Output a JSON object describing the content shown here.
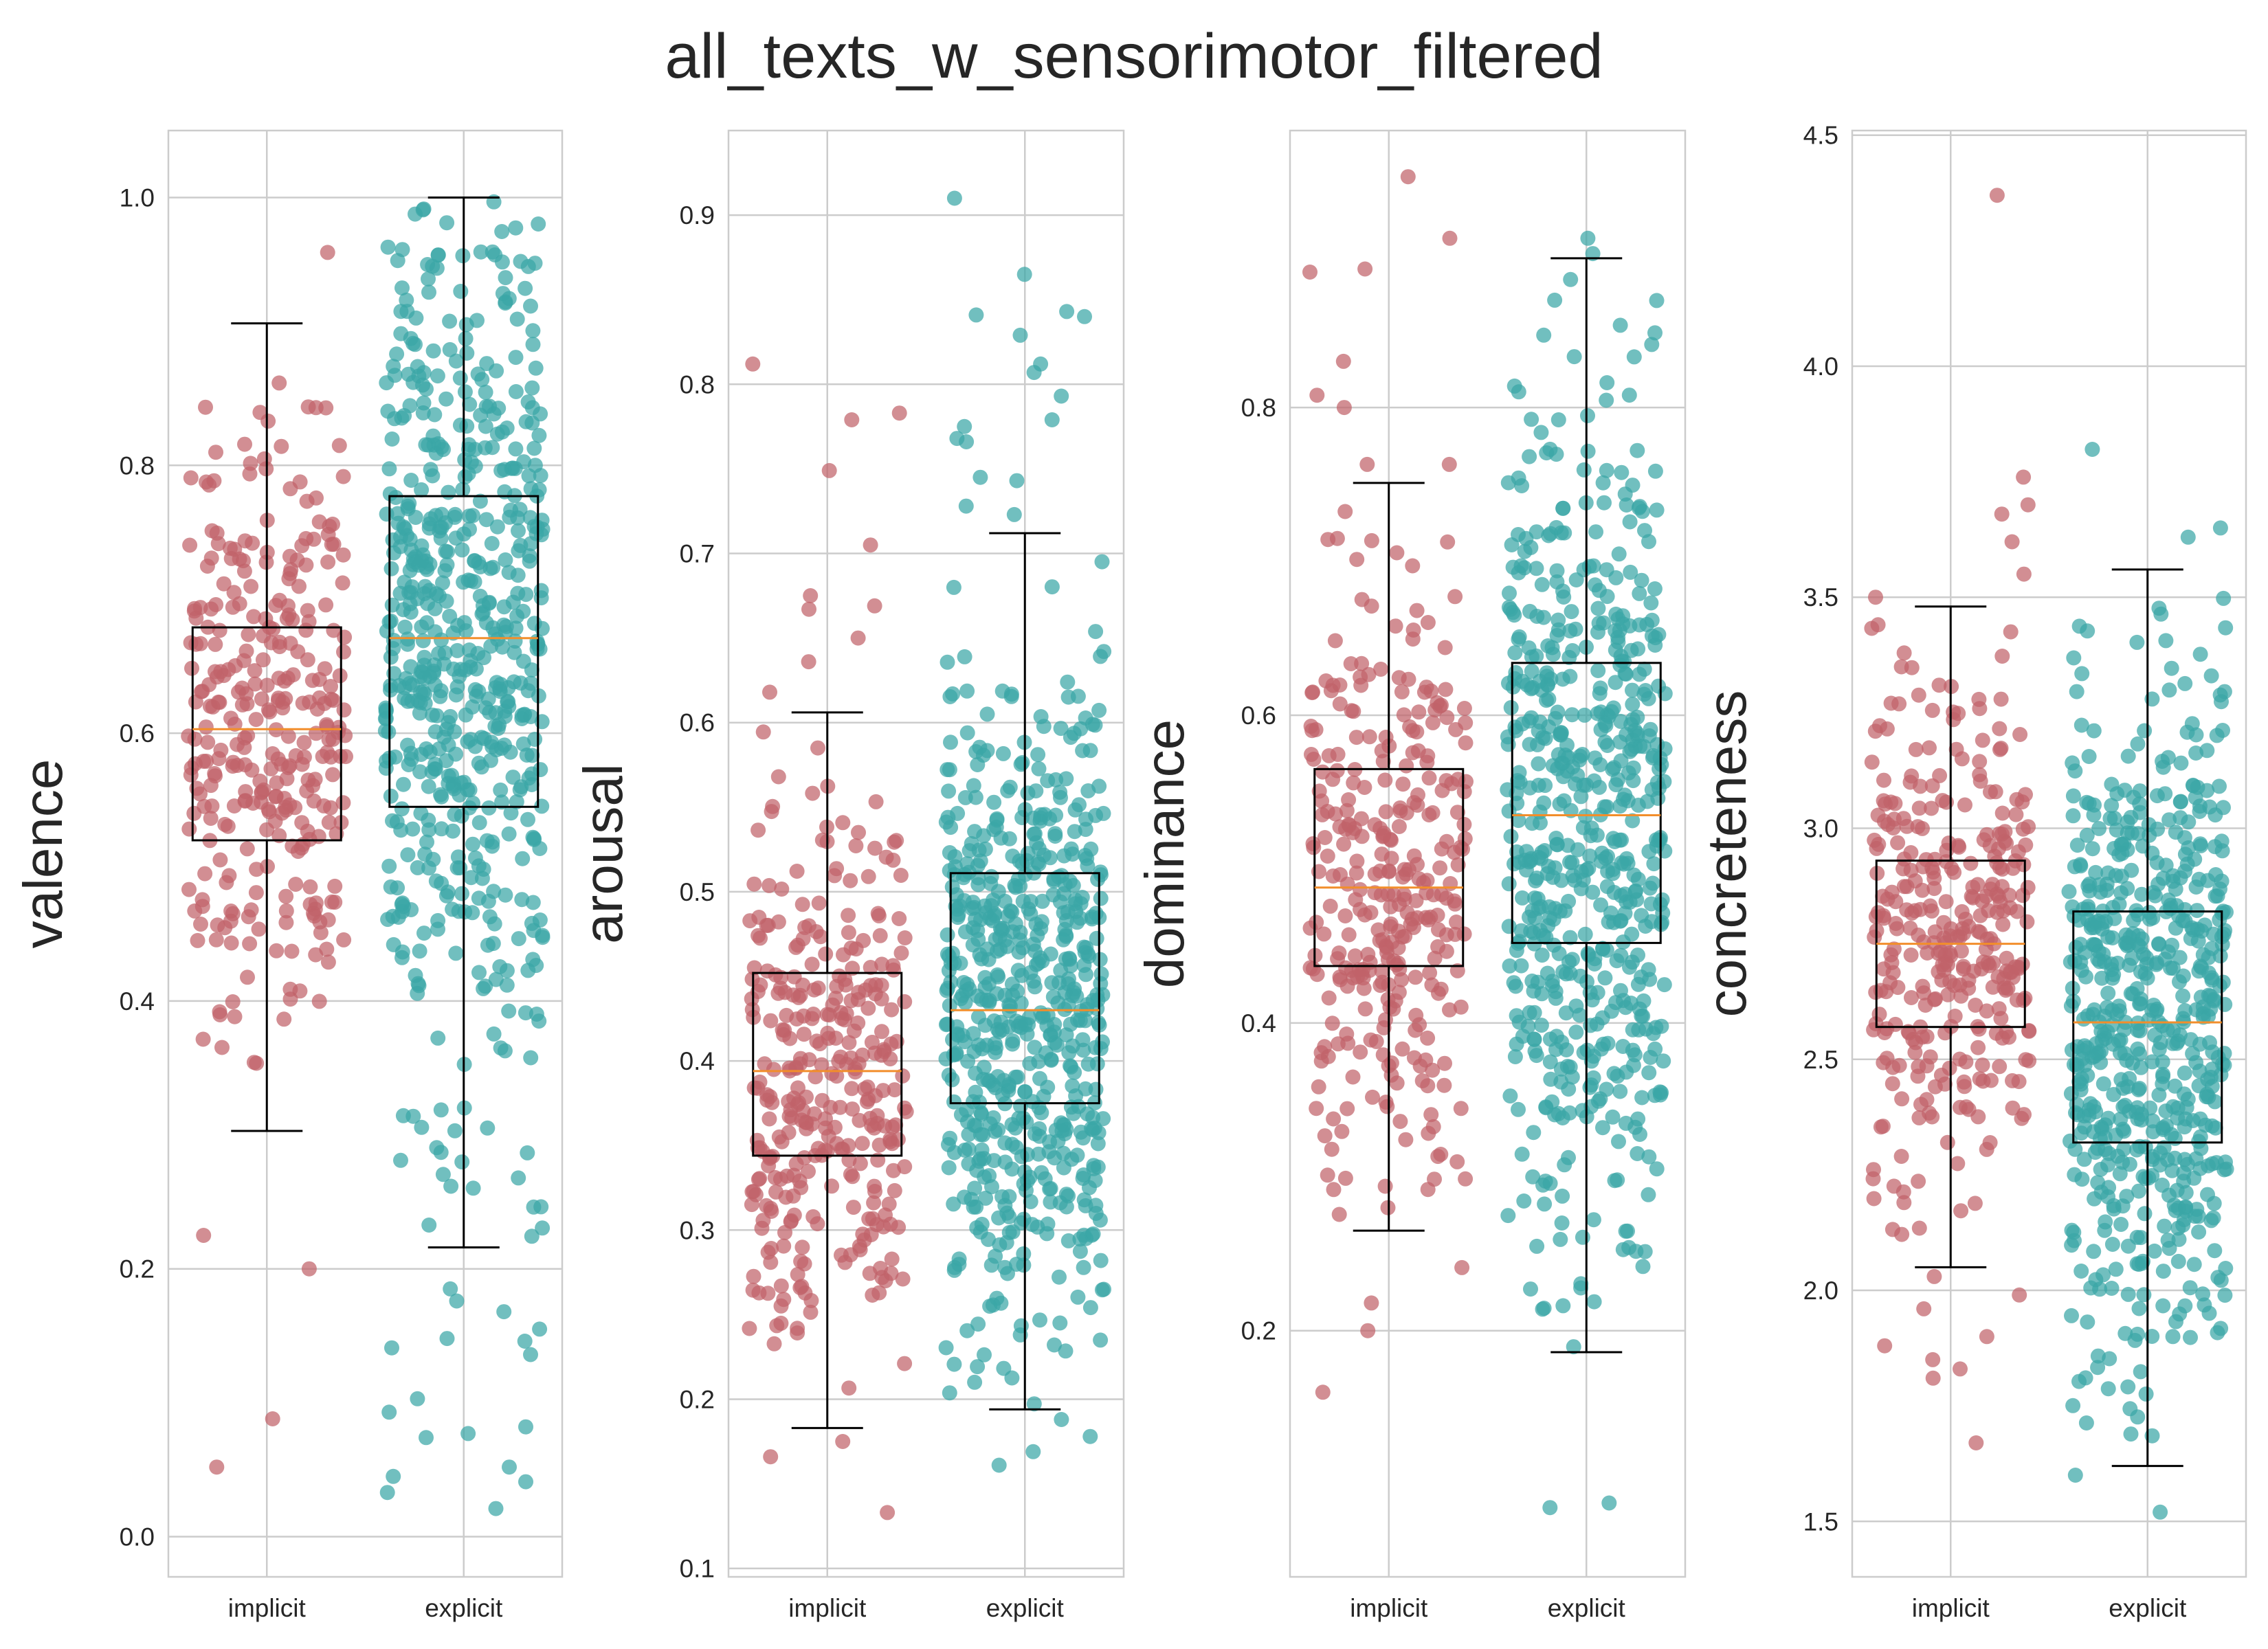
{
  "figure": {
    "title": "all_texts_w_sensorimotor_filtered"
  },
  "colors": {
    "implicit": "#c0626a",
    "explicit": "#3aa6a6",
    "median": "#f28e2b",
    "box": "#000000",
    "grid": "#cccccc",
    "frame": "#cccccc"
  },
  "chart_data": [
    {
      "type": "box",
      "ylabel": "valence",
      "ylim": [
        -0.03,
        1.05
      ],
      "yticks": [
        "0.0",
        "0.2",
        "0.4",
        "0.6",
        "0.8",
        "1.0"
      ],
      "categories": [
        "implicit",
        "explicit"
      ],
      "boxes": [
        {
          "name": "implicit",
          "q1": 0.52,
          "median": 0.603,
          "q3": 0.679,
          "whisker_low": 0.303,
          "whisker_high": 0.906,
          "n_points": 320,
          "range": [
            0.3,
            0.91
          ],
          "outliers": [
            0.959,
            0.225,
            0.2,
            0.088,
            0.052
          ]
        },
        {
          "name": "explicit",
          "q1": 0.545,
          "median": 0.671,
          "q3": 0.777,
          "whisker_low": 0.216,
          "whisker_high": 1.0,
          "n_points": 600,
          "range": [
            0.22,
            1.0
          ],
          "outliers": [
            0.185,
            0.176,
            0.168,
            0.155,
            0.148,
            0.146,
            0.141,
            0.136,
            0.103,
            0.093,
            0.082,
            0.077,
            0.074,
            0.052,
            0.045,
            0.041,
            0.033,
            0.021
          ]
        }
      ]
    },
    {
      "type": "box",
      "ylabel": "arousal",
      "ylim": [
        0.095,
        0.95
      ],
      "yticks": [
        "0.1",
        "0.2",
        "0.3",
        "0.4",
        "0.5",
        "0.6",
        "0.7",
        "0.8",
        "0.9"
      ],
      "categories": [
        "implicit",
        "explicit"
      ],
      "boxes": [
        {
          "name": "implicit",
          "q1": 0.344,
          "median": 0.394,
          "q3": 0.452,
          "whisker_low": 0.183,
          "whisker_high": 0.606,
          "n_points": 330,
          "range": [
            0.185,
            0.6
          ],
          "outliers": [
            0.812,
            0.783,
            0.779,
            0.749,
            0.705,
            0.675,
            0.669,
            0.667,
            0.65,
            0.636,
            0.618,
            0.175,
            0.166,
            0.133
          ]
        },
        {
          "name": "explicit",
          "q1": 0.375,
          "median": 0.43,
          "q3": 0.511,
          "whisker_low": 0.194,
          "whisker_high": 0.712,
          "n_points": 600,
          "range": [
            0.195,
            0.71
          ],
          "outliers": [
            0.91,
            0.865,
            0.843,
            0.841,
            0.84,
            0.829,
            0.812,
            0.807,
            0.793,
            0.779,
            0.775,
            0.768,
            0.766,
            0.745,
            0.743,
            0.728,
            0.723,
            0.188,
            0.178,
            0.169,
            0.161
          ]
        }
      ]
    },
    {
      "type": "box",
      "ylabel": "dominance",
      "ylim": [
        0.04,
        0.98
      ],
      "yticks": [
        "0.2",
        "0.4",
        "0.6",
        "0.8"
      ],
      "categories": [
        "implicit",
        "explicit"
      ],
      "boxes": [
        {
          "name": "implicit",
          "q1": 0.437,
          "median": 0.488,
          "q3": 0.565,
          "whisker_low": 0.265,
          "whisker_high": 0.751,
          "n_points": 320,
          "range": [
            0.265,
            0.75
          ],
          "outliers": [
            0.95,
            0.91,
            0.89,
            0.888,
            0.83,
            0.808,
            0.8,
            0.763,
            0.763,
            0.241,
            0.218,
            0.2,
            0.16
          ]
        },
        {
          "name": "explicit",
          "q1": 0.452,
          "median": 0.535,
          "q3": 0.634,
          "whisker_low": 0.186,
          "whisker_high": 0.897,
          "n_points": 600,
          "range": [
            0.186,
            0.897
          ],
          "outliers": [
            0.91,
            0.9,
            0.088,
            0.085
          ]
        }
      ]
    },
    {
      "type": "box",
      "ylabel": "concreteness",
      "ylim": [
        1.38,
        4.51
      ],
      "yticks": [
        "1.5",
        "2.0",
        "2.5",
        "3.0",
        "3.5",
        "4.0",
        "4.5"
      ],
      "categories": [
        "implicit",
        "explicit"
      ],
      "boxes": [
        {
          "name": "implicit",
          "q1": 2.57,
          "median": 2.75,
          "q3": 2.93,
          "whisker_low": 2.05,
          "whisker_high": 3.48,
          "n_points": 330,
          "range": [
            2.05,
            3.48
          ],
          "outliers": [
            4.37,
            3.76,
            3.7,
            3.68,
            3.62,
            3.55,
            3.5,
            2.03,
            1.99,
            1.96,
            1.9,
            1.88,
            1.85,
            1.83,
            1.81,
            1.67
          ]
        },
        {
          "name": "explicit",
          "q1": 2.32,
          "median": 2.58,
          "q3": 2.82,
          "whisker_low": 1.62,
          "whisker_high": 3.56,
          "n_points": 600,
          "range": [
            1.62,
            3.56
          ],
          "outliers": [
            3.82,
            3.65,
            3.63,
            1.6,
            1.52
          ]
        }
      ]
    }
  ]
}
